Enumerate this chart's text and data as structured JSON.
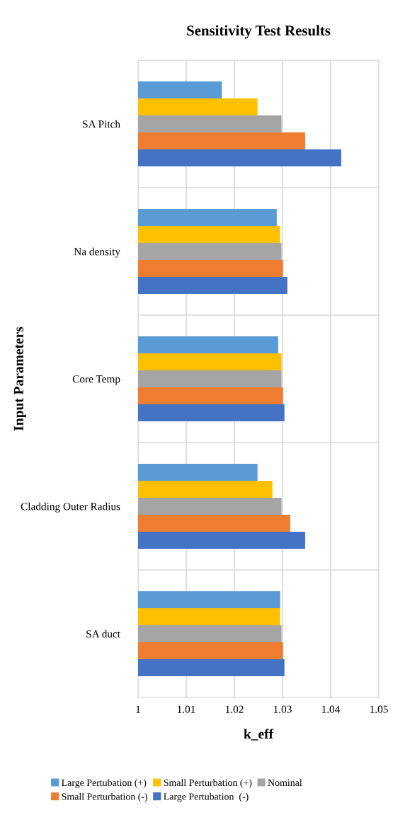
{
  "chart_data": {
    "type": "bar",
    "orientation": "horizontal",
    "title": "Sensitivity Test Results",
    "xlabel": "k_eff",
    "ylabel": "Input Parameters",
    "categories": [
      "SA Pitch",
      "Na density",
      "Core Temp",
      "Cladding Outer Radius",
      "SA duct"
    ],
    "series": [
      {
        "name": "Large Pertubation (+)",
        "color": "#5b9bd5",
        "values": [
          1.0174,
          1.0288,
          1.0291,
          1.0248,
          1.0295
        ]
      },
      {
        "name": "Small Perturbation (+)",
        "color": "#ffc000",
        "values": [
          1.0248,
          1.0295,
          1.0298,
          1.0279,
          1.0295
        ]
      },
      {
        "name": "Nominal",
        "color": "#a5a5a5",
        "values": [
          1.0298,
          1.0298,
          1.0298,
          1.0298,
          1.0298
        ]
      },
      {
        "name": "Small Perturbation (-)",
        "color": "#ed7d31",
        "values": [
          1.0347,
          1.0301,
          1.0301,
          1.0316,
          1.0301
        ]
      },
      {
        "name": "Large Pertubation  (-)",
        "color": "#4472c4",
        "values": [
          1.0422,
          1.031,
          1.0304,
          1.0347,
          1.0304
        ]
      }
    ],
    "xlim": [
      1,
      1.05
    ],
    "xticks": [
      1,
      1.01,
      1.02,
      1.03,
      1.04,
      1.05
    ],
    "grid": true,
    "legend": "bottom"
  }
}
